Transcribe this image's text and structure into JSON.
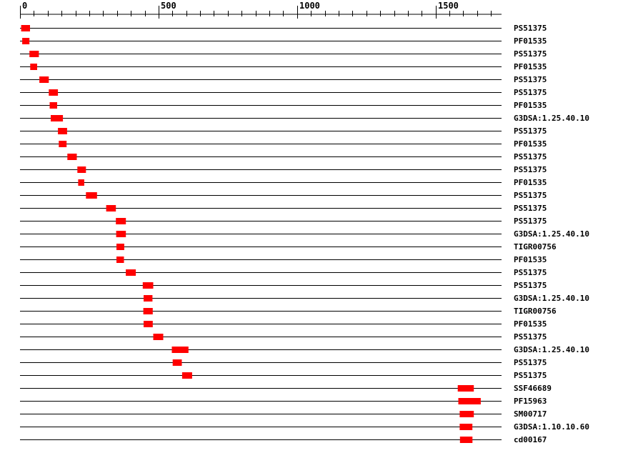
{
  "chart_data": {
    "type": "bar",
    "axis": {
      "xlim": [
        0,
        1740
      ],
      "major_ticks": [
        0,
        500,
        1000,
        1500
      ],
      "minor_tick_step": 50
    },
    "colors": {
      "domain": "#ff0000",
      "line": "#000000"
    },
    "rows": [
      {
        "label": "PS51375",
        "start": 4,
        "end": 36
      },
      {
        "label": "PF01535",
        "start": 8,
        "end": 34
      },
      {
        "label": "PS51375",
        "start": 34,
        "end": 68
      },
      {
        "label": "PF01535",
        "start": 37,
        "end": 62
      },
      {
        "label": "PS51375",
        "start": 70,
        "end": 104
      },
      {
        "label": "PS51375",
        "start": 104,
        "end": 137
      },
      {
        "label": "PF01535",
        "start": 107,
        "end": 134
      },
      {
        "label": "G3DSA:1.25.40.10",
        "start": 111,
        "end": 155
      },
      {
        "label": "PS51375",
        "start": 137,
        "end": 170
      },
      {
        "label": "PF01535",
        "start": 140,
        "end": 168
      },
      {
        "label": "PS51375",
        "start": 171,
        "end": 205
      },
      {
        "label": "PS51375",
        "start": 207,
        "end": 238
      },
      {
        "label": "PF01535",
        "start": 210,
        "end": 232
      },
      {
        "label": "PS51375",
        "start": 238,
        "end": 278
      },
      {
        "label": "PS51375",
        "start": 311,
        "end": 346
      },
      {
        "label": "PS51375",
        "start": 346,
        "end": 382
      },
      {
        "label": "G3DSA:1.25.40.10",
        "start": 347,
        "end": 382
      },
      {
        "label": "TIGR00756",
        "start": 348,
        "end": 376
      },
      {
        "label": "PF01535",
        "start": 348,
        "end": 375
      },
      {
        "label": "PS51375",
        "start": 382,
        "end": 418
      },
      {
        "label": "PS51375",
        "start": 443,
        "end": 481
      },
      {
        "label": "G3DSA:1.25.40.10",
        "start": 446,
        "end": 478
      },
      {
        "label": "TIGR00756",
        "start": 445,
        "end": 479
      },
      {
        "label": "PF01535",
        "start": 446,
        "end": 479
      },
      {
        "label": "PS51375",
        "start": 481,
        "end": 517
      },
      {
        "label": "G3DSA:1.25.40.10",
        "start": 548,
        "end": 608
      },
      {
        "label": "PS51375",
        "start": 551,
        "end": 584
      },
      {
        "label": "PS51375",
        "start": 585,
        "end": 621
      },
      {
        "label": "SSF46689",
        "start": 1580,
        "end": 1638
      },
      {
        "label": "PF15963",
        "start": 1582,
        "end": 1663
      },
      {
        "label": "SM00717",
        "start": 1587,
        "end": 1638
      },
      {
        "label": "G3DSA:1.10.10.60",
        "start": 1587,
        "end": 1633
      },
      {
        "label": "cd00167",
        "start": 1588,
        "end": 1633
      }
    ]
  }
}
